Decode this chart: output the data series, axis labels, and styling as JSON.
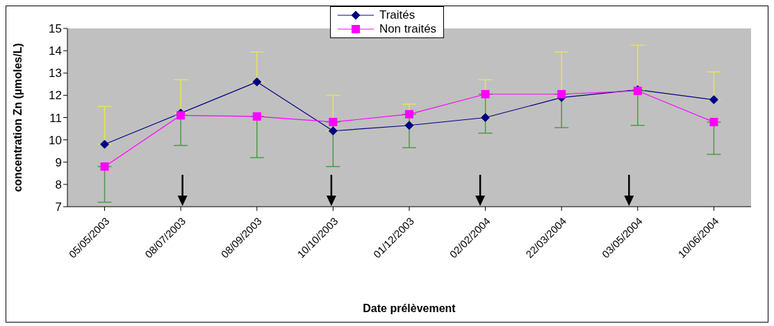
{
  "chart_data": {
    "type": "line",
    "xlabel": "Date prélèvement",
    "ylabel": "concentration Zn (µmoles/L)",
    "categories": [
      "05/05/2003",
      "08/07/2003",
      "08/09/2003",
      "10/10/2003",
      "01/12/2003",
      "02/02/2004",
      "22/03/2004",
      "03/05/2004",
      "10/06/2004"
    ],
    "series": [
      {
        "name": "Traités",
        "color": "#000080",
        "marker": "diamond",
        "values": [
          9.8,
          11.2,
          12.6,
          10.4,
          10.65,
          11.0,
          11.9,
          12.25,
          11.8
        ],
        "errors": [
          [
            9.8,
            11.5
          ],
          [
            11.2,
            12.7
          ],
          [
            12.6,
            13.95
          ],
          [
            10.4,
            12.0
          ],
          [
            10.65,
            11.6
          ],
          [
            11.0,
            12.7
          ],
          [
            11.9,
            13.95
          ],
          [
            12.25,
            14.25
          ],
          [
            11.8,
            13.05
          ]
        ]
      },
      {
        "name": "Non traités",
        "color": "#ff00ff",
        "marker": "square",
        "values": [
          8.8,
          11.1,
          11.05,
          10.8,
          11.15,
          12.05,
          12.05,
          12.2,
          10.8
        ],
        "errors": [
          [
            7.2,
            8.8
          ],
          [
            9.75,
            11.1
          ],
          [
            9.2,
            11.05
          ],
          [
            8.8,
            10.8
          ],
          [
            9.65,
            11.15
          ],
          [
            10.3,
            12.05
          ],
          [
            10.55,
            12.05
          ],
          [
            10.65,
            12.2
          ],
          [
            9.35,
            10.8
          ]
        ]
      }
    ],
    "ylim": [
      7,
      15
    ],
    "yticks": [
      7,
      8,
      9,
      10,
      11,
      12,
      13,
      14,
      15
    ],
    "grid": false,
    "legend": "top"
  }
}
